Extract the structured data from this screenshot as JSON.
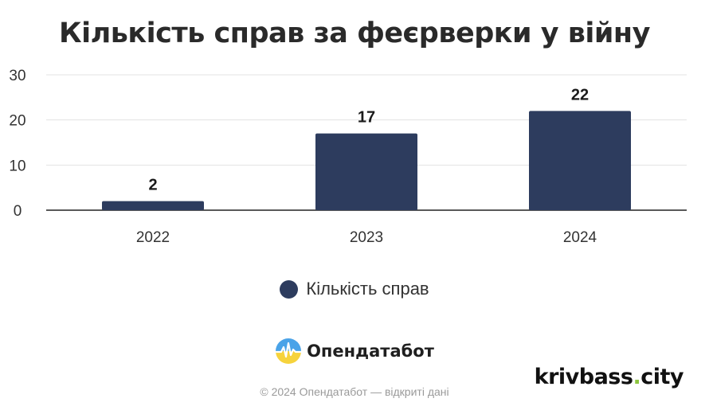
{
  "chart_data": {
    "type": "bar",
    "title": "Кількість справ за феєрверки у війну",
    "categories": [
      "2022",
      "2023",
      "2024"
    ],
    "series": [
      {
        "name": "Кількість справ",
        "values": [
          2,
          17,
          22
        ],
        "color": "#2d3c5e"
      }
    ],
    "data_labels": [
      "2",
      "17",
      "22"
    ],
    "y_ticks": [
      "0",
      "10",
      "20",
      "30"
    ],
    "ylim": [
      0,
      30
    ],
    "grid": true,
    "legend_position": "bottom"
  },
  "branding": {
    "logo_name": "Опендатабот",
    "logo_icon": "opendatabot-logo-icon",
    "footer": "© 2024 Опендатабот — відкриті дані",
    "watermark_left": "krivbass",
    "watermark_dot": ".",
    "watermark_right": "city"
  },
  "colors": {
    "bar": "#2d3c5e",
    "grid": "#e3e3e3",
    "watermark_dot": "#8dc63f"
  }
}
